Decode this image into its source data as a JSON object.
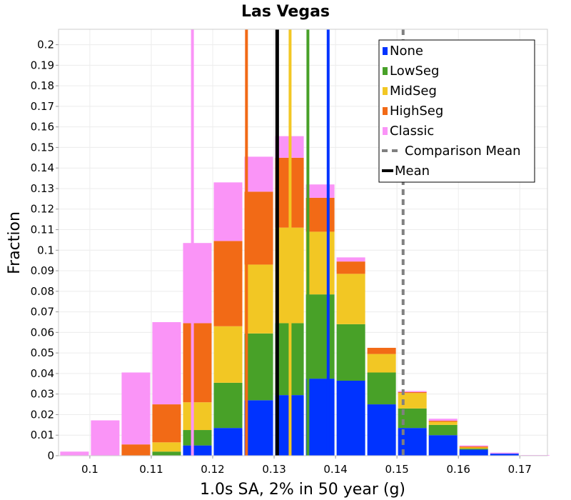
{
  "chart_data": {
    "type": "bar",
    "stacked": true,
    "title": "Las Vegas",
    "xlabel": "1.0s SA, 2% in 50 year (g)",
    "ylabel": "Fraction",
    "xlim": [
      0.0949,
      0.1745
    ],
    "ylim": [
      0,
      0.2075
    ],
    "xticks": [
      "0.1",
      "0.11",
      "0.12",
      "0.13",
      "0.14",
      "0.15",
      "0.16",
      "0.17"
    ],
    "xtick_values": [
      0.1,
      0.11,
      0.12,
      0.13,
      0.14,
      0.15,
      0.16,
      0.17
    ],
    "yticks": [
      "0",
      "0.01",
      "0.02",
      "0.03",
      "0.04",
      "0.05",
      "0.06",
      "0.07",
      "0.08",
      "0.09",
      "0.1",
      "0.11",
      "0.12",
      "0.13",
      "0.14",
      "0.15",
      "0.16",
      "0.17",
      "0.18",
      "0.19",
      "0.2"
    ],
    "ytick_values": [
      0,
      0.01,
      0.02,
      0.03,
      0.04,
      0.05,
      0.06,
      0.07,
      0.08,
      0.09,
      0.1,
      0.11,
      0.12,
      0.13,
      0.14,
      0.15,
      0.16,
      0.17,
      0.18,
      0.19,
      0.2
    ],
    "bin_width": 0.005,
    "bin_centers": [
      0.0975,
      0.1025,
      0.1075,
      0.1125,
      0.1175,
      0.1225,
      0.1275,
      0.1325,
      0.1375,
      0.1425,
      0.1475,
      0.1525,
      0.1575,
      0.1625,
      0.1675,
      0.1725
    ],
    "series": [
      {
        "name": "None",
        "color": "#0033ff",
        "values": [
          0,
          0,
          0,
          0,
          0.005,
          0.0135,
          0.027,
          0.0295,
          0.0375,
          0.0365,
          0.025,
          0.0135,
          0.01,
          0.003,
          0.001,
          0
        ]
      },
      {
        "name": "LowSeg",
        "color": "#48a128",
        "values": [
          0,
          0,
          0,
          0.002,
          0.0075,
          0.022,
          0.0325,
          0.035,
          0.041,
          0.0275,
          0.0155,
          0.0095,
          0.005,
          0.0005,
          0,
          0
        ]
      },
      {
        "name": "MidSeg",
        "color": "#f2c724",
        "values": [
          0,
          0,
          0,
          0.0045,
          0.0135,
          0.0275,
          0.0335,
          0.0465,
          0.0305,
          0.0245,
          0.009,
          0.0075,
          0.0015,
          0.0005,
          0,
          0
        ]
      },
      {
        "name": "HighSeg",
        "color": "#f26a16",
        "values": [
          0,
          0,
          0.0055,
          0.0185,
          0.0385,
          0.0415,
          0.0355,
          0.034,
          0.0165,
          0.006,
          0.003,
          0.0005,
          0.0005,
          0.0005,
          0,
          0
        ]
      },
      {
        "name": "Classic",
        "color": "#fa94f7",
        "values": [
          0.002,
          0.0172,
          0.035,
          0.04,
          0.039,
          0.0285,
          0.017,
          0.0105,
          0.0065,
          0.002,
          0,
          0.0005,
          0.001,
          0.0005,
          0.0005,
          0.0003
        ]
      }
    ],
    "vertical_lines": [
      {
        "name": "Classic mean",
        "x": 0.1167,
        "color": "#fa94f7",
        "style": "solid"
      },
      {
        "name": "HighSeg mean",
        "x": 0.1255,
        "color": "#f26a16",
        "style": "solid"
      },
      {
        "name": "Mean",
        "x": 0.1305,
        "color": "#000000",
        "style": "solid"
      },
      {
        "name": "MidSeg mean",
        "x": 0.1326,
        "color": "#f2c724",
        "style": "solid"
      },
      {
        "name": "LowSeg mean",
        "x": 0.1355,
        "color": "#48a128",
        "style": "solid"
      },
      {
        "name": "None mean",
        "x": 0.1388,
        "color": "#0033ff",
        "style": "solid"
      },
      {
        "name": "Comparison Mean",
        "x": 0.151,
        "color": "#808080",
        "style": "dashed"
      }
    ],
    "legend": {
      "position": "top-right",
      "entries": [
        {
          "label": "None",
          "color": "#0033ff",
          "kind": "box"
        },
        {
          "label": "LowSeg",
          "color": "#48a128",
          "kind": "box"
        },
        {
          "label": "MidSeg",
          "color": "#f2c724",
          "kind": "box"
        },
        {
          "label": "HighSeg",
          "color": "#f26a16",
          "kind": "box"
        },
        {
          "label": "Classic",
          "color": "#fa94f7",
          "kind": "box"
        },
        {
          "label": "Comparison Mean",
          "color": "#808080",
          "kind": "dashed"
        },
        {
          "label": "Mean",
          "color": "#000000",
          "kind": "line"
        }
      ]
    },
    "grid": true
  }
}
